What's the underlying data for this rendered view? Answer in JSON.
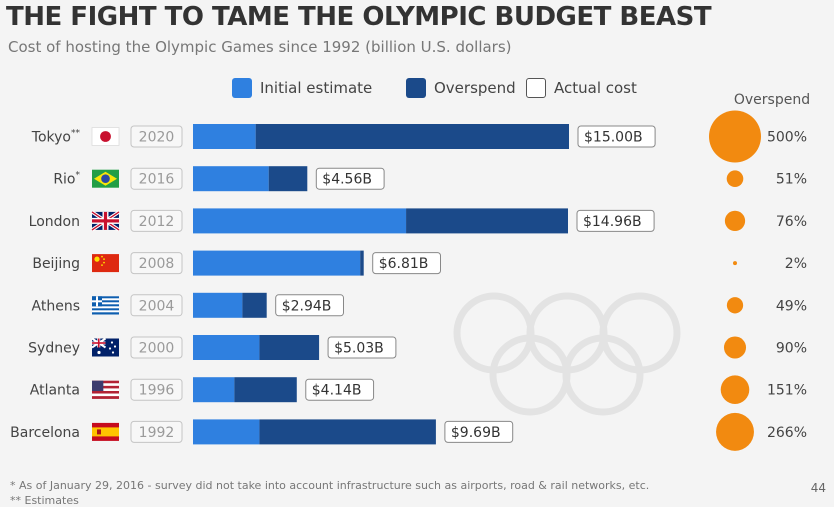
{
  "header": {
    "title": "THE FIGHT TO TAME THE OLYMPIC BUDGET BEAST",
    "subtitle": "Cost of hosting the Olympic Games since 1992 (billion U.S. dollars)"
  },
  "legend": {
    "initial": "Initial estimate",
    "overspend": "Overspend",
    "actual": "Actual cost"
  },
  "overspend_header": "Overspend",
  "colors": {
    "initial": "#2f80e0",
    "overspend": "#1b4a8a",
    "circle": "#f28a10",
    "watermark": "#e3e3e3"
  },
  "chart_data": {
    "type": "bar",
    "stacked": true,
    "orientation": "horizontal",
    "title": "THE FIGHT TO TAME THE OLYMPIC BUDGET BEAST",
    "subtitle": "Cost of hosting the Olympic Games since 1992 (billion U.S. dollars)",
    "legend_position": "top",
    "categories": [
      {
        "city": "Tokyo",
        "mark": "**",
        "year": "2020",
        "flag": "japan-flag-icon"
      },
      {
        "city": "Rio",
        "mark": "*",
        "year": "2016",
        "flag": "brazil-flag-icon"
      },
      {
        "city": "London",
        "mark": "",
        "year": "2012",
        "flag": "uk-flag-icon"
      },
      {
        "city": "Beijing",
        "mark": "",
        "year": "2008",
        "flag": "china-flag-icon"
      },
      {
        "city": "Athens",
        "mark": "",
        "year": "2004",
        "flag": "greece-flag-icon"
      },
      {
        "city": "Sydney",
        "mark": "",
        "year": "2000",
        "flag": "australia-flag-icon"
      },
      {
        "city": "Atlanta",
        "mark": "",
        "year": "1996",
        "flag": "usa-flag-icon"
      },
      {
        "city": "Barcelona",
        "mark": "",
        "year": "1992",
        "flag": "spain-flag-icon"
      }
    ],
    "series": [
      {
        "name": "Initial estimate",
        "values": [
          2.5,
          3.02,
          8.5,
          6.67,
          1.97,
          2.65,
          1.65,
          2.65
        ]
      },
      {
        "name": "Overspend",
        "values": [
          12.5,
          1.54,
          6.46,
          0.14,
          0.97,
          2.38,
          2.49,
          7.04
        ]
      }
    ],
    "actual_cost_labels": [
      "$15.00B",
      "$4.56B",
      "$14.96B",
      "$6.81B",
      "$2.94B",
      "$5.03B",
      "$4.14B",
      "$9.69B"
    ],
    "actual_cost": [
      15.0,
      4.56,
      14.96,
      6.81,
      2.94,
      5.03,
      4.14,
      9.69
    ],
    "overspend_pct": [
      500,
      51,
      76,
      2,
      49,
      90,
      151,
      266
    ],
    "overspend_pct_labels": [
      "500%",
      "51%",
      "76%",
      "2%",
      "49%",
      "90%",
      "151%",
      "266%"
    ],
    "xlim": [
      0,
      15
    ]
  },
  "footnotes": {
    "note1": "*  As of January 29, 2016 - survey did not take into account infrastructure such as airports, road & rail networks, etc.",
    "note2": "** Estimates"
  },
  "page_number": "44"
}
